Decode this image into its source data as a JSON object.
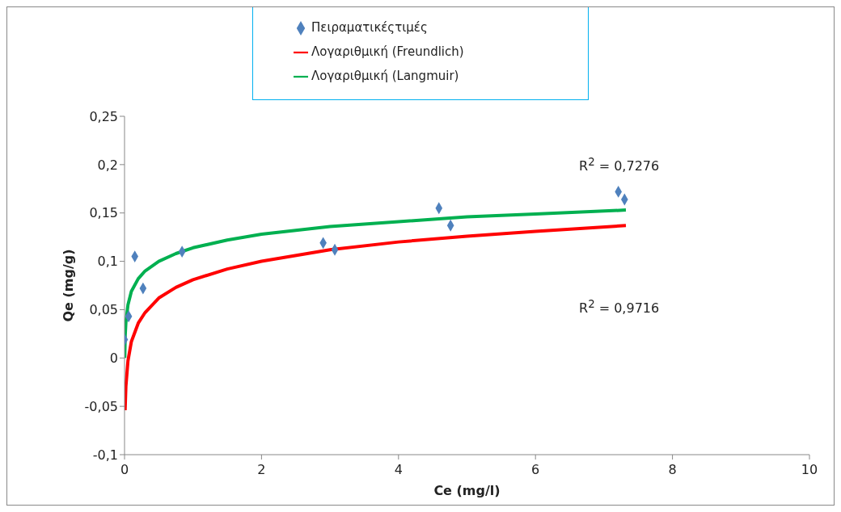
{
  "chart_data": {
    "type": "scatter",
    "xlabel": "Ce (mg/l)",
    "ylabel": "Qe (mg/g)",
    "xlim": [
      0,
      10
    ],
    "xticks": [
      0,
      2,
      4,
      6,
      8,
      10
    ],
    "ylim": [
      -0.1,
      0.25
    ],
    "yticks": [
      {
        "value": -0.1,
        "label": "-0,1"
      },
      {
        "value": -0.05,
        "label": "-0,05"
      },
      {
        "value": 0,
        "label": "0"
      },
      {
        "value": 0.05,
        "label": "0,05"
      },
      {
        "value": 0.1,
        "label": "0,1"
      },
      {
        "value": 0.15,
        "label": "0,15"
      },
      {
        "value": 0.2,
        "label": "0,2"
      },
      {
        "value": 0.25,
        "label": "0,25"
      }
    ],
    "legend": "top",
    "grid": false,
    "series": [
      {
        "name": "Πειραματικέςτιμές",
        "marker": "diamond",
        "color": "#4f81bd",
        "x": [
          0.0,
          0.06,
          0.15,
          0.27,
          0.84,
          2.9,
          3.07,
          4.59,
          4.76,
          7.21,
          7.3
        ],
        "values": [
          0.019,
          0.043,
          0.105,
          0.072,
          0.11,
          0.119,
          0.112,
          0.155,
          0.137,
          0.172,
          0.164
        ]
      },
      {
        "name": "Λογαριθμική (Freundlich)",
        "type": "line",
        "color": "#ff0000",
        "x": [
          0.008,
          0.02,
          0.05,
          0.1,
          0.2,
          0.3,
          0.5,
          0.75,
          1,
          1.5,
          2,
          3,
          4,
          5,
          6,
          7.32
        ],
        "values": [
          -0.054,
          -0.029,
          -0.003,
          0.017,
          0.036,
          0.047,
          0.062,
          0.073,
          0.081,
          0.092,
          0.1,
          0.112,
          0.12,
          0.126,
          0.131,
          0.137
        ]
      },
      {
        "name": "Λογαριθμική (Langmuir)",
        "type": "line",
        "color": "#00b050",
        "x": [
          0.003,
          0.01,
          0.02,
          0.05,
          0.1,
          0.2,
          0.3,
          0.5,
          0.75,
          1,
          1.5,
          2,
          3,
          4,
          5,
          6,
          7.32
        ],
        "values": [
          0,
          0.024,
          0.037,
          0.055,
          0.069,
          0.082,
          0.09,
          0.1,
          0.108,
          0.114,
          0.122,
          0.128,
          0.136,
          0.141,
          0.146,
          0.149,
          0.153
        ]
      }
    ],
    "annotations": [
      "R$^{2}$ = 0,7276",
      "R$^{2}$ = 0,9716"
    ]
  }
}
